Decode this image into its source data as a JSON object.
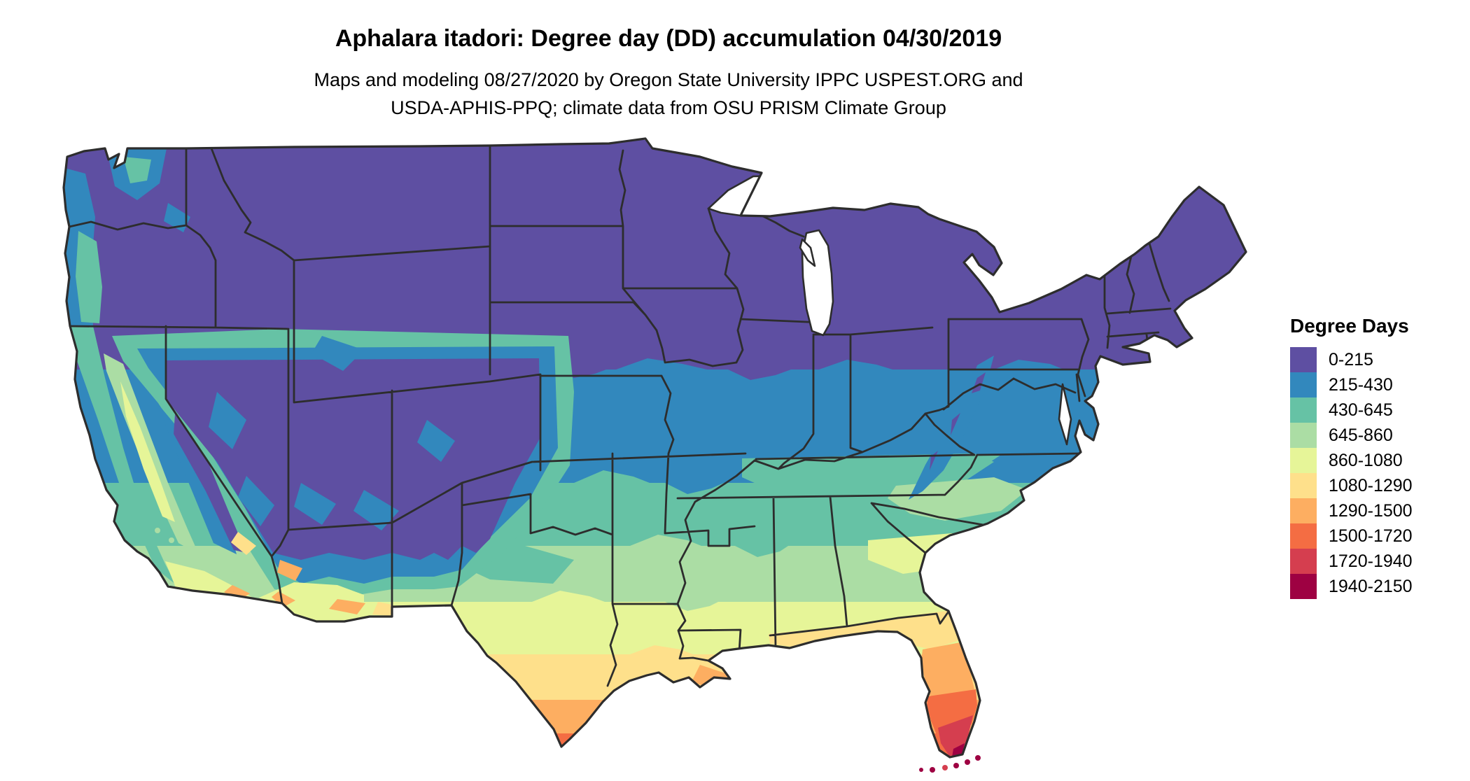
{
  "header": {
    "title": "Aphalara itadori: Degree day (DD) accumulation 04/30/2019",
    "subtitle_line1": "Maps and modeling 08/27/2020 by Oregon State University IPPC USPEST.ORG and",
    "subtitle_line2": "USDA-APHIS-PPQ; climate data from OSU PRISM Climate Group"
  },
  "map": {
    "type": "choropleth-raster",
    "area": "contiguous-united-states",
    "variable": "degree-day accumulation",
    "band_colors_north_to_south": [
      "#5E4FA2",
      "#3288BD",
      "#66C2A5",
      "#ABDDA4",
      "#E6F598",
      "#FEE08B",
      "#FDAE61",
      "#F46D43",
      "#D53E4F",
      "#9E0142"
    ]
  },
  "legend": {
    "title": "Degree Days",
    "items": [
      {
        "label": "0-215",
        "color": "#5E4FA2"
      },
      {
        "label": "215-430",
        "color": "#3288BD"
      },
      {
        "label": "430-645",
        "color": "#66C2A5"
      },
      {
        "label": "645-860",
        "color": "#ABDDA4"
      },
      {
        "label": "860-1080",
        "color": "#E6F598"
      },
      {
        "label": "1080-1290",
        "color": "#FEE08B"
      },
      {
        "label": "1290-1500",
        "color": "#FDAE61"
      },
      {
        "label": "1500-1720",
        "color": "#F46D43"
      },
      {
        "label": "1720-1940",
        "color": "#D53E4F"
      },
      {
        "label": "1940-2150",
        "color": "#9E0142"
      }
    ]
  }
}
